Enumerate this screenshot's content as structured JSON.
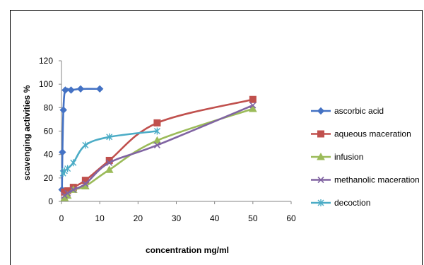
{
  "chart_data": {
    "type": "scatter",
    "title": "",
    "xlabel": "concentration mg/ml",
    "ylabel": "scavenging activities %",
    "xlim": [
      0,
      60
    ],
    "ylim": [
      0,
      120
    ],
    "xticks": [
      "0",
      "10",
      "20",
      "30",
      "40",
      "50",
      "60"
    ],
    "yticks": [
      "0",
      "20",
      "40",
      "60",
      "80",
      "100",
      "120"
    ],
    "grid": false,
    "smoothed_lines": true,
    "legend_position": "right",
    "series": [
      {
        "name": "ascorbic acid",
        "color": "#4472C4",
        "marker": "diamond",
        "x": [
          0.125,
          0.25,
          0.5,
          1,
          2.5,
          5,
          10
        ],
        "y": [
          10,
          42,
          78,
          95,
          95,
          96,
          96
        ]
      },
      {
        "name": "aqueous maceration",
        "color": "#C0504D",
        "marker": "square",
        "x": [
          0.8,
          1.6,
          3.1,
          6.25,
          12.5,
          25,
          50
        ],
        "y": [
          8,
          9,
          12,
          18,
          35,
          67,
          87
        ]
      },
      {
        "name": "infusion",
        "color": "#9BBB59",
        "marker": "triangle",
        "x": [
          0.8,
          1.6,
          3.1,
          6.25,
          12.5,
          25,
          50
        ],
        "y": [
          3,
          5,
          10,
          13,
          27,
          52,
          79
        ]
      },
      {
        "name": "methanolic maceration",
        "color": "#8064A2",
        "marker": "x",
        "x": [
          0.8,
          1.6,
          3.1,
          6.25,
          12.5,
          25,
          50
        ],
        "y": [
          5,
          7,
          10,
          15,
          33,
          48,
          82
        ]
      },
      {
        "name": "decoction",
        "color": "#4BACC6",
        "marker": "star",
        "x": [
          0.4,
          0.8,
          1.6,
          3.1,
          6.25,
          12.5,
          25
        ],
        "y": [
          24,
          26,
          28,
          33,
          48,
          55,
          60
        ]
      }
    ]
  }
}
